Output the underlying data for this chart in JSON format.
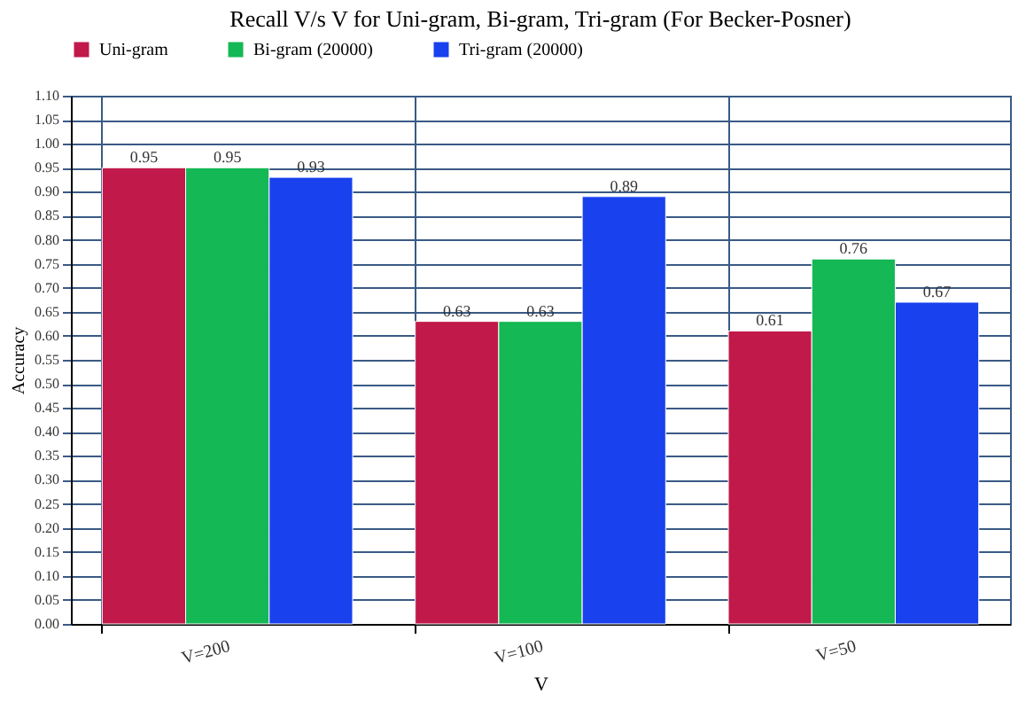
{
  "chart_data": {
    "type": "bar",
    "title": "Recall V/s V for Uni-gram, Bi-gram, Tri-gram (For Becker-Posner)",
    "xlabel": "V",
    "ylabel": "Accuracy",
    "categories": [
      "V=200",
      "V=100",
      "V=50"
    ],
    "series": [
      {
        "name": "Uni-gram",
        "color": "#c0194a",
        "values": [
          0.95,
          0.63,
          0.61
        ]
      },
      {
        "name": "Bi-gram (20000)",
        "color": "#14b854",
        "values": [
          0.95,
          0.63,
          0.76
        ]
      },
      {
        "name": "Tri-gram (20000)",
        "color": "#1941ee",
        "values": [
          0.93,
          0.89,
          0.67
        ]
      }
    ],
    "ylim": [
      0,
      1.1
    ],
    "yticks": [
      {
        "value": 0,
        "label": "0.00"
      },
      {
        "value": 0.05,
        "label": "0.05"
      },
      {
        "value": 0.1,
        "label": "0.10"
      },
      {
        "value": 0.15,
        "label": "0.15"
      },
      {
        "value": 0.2,
        "label": "0.20"
      },
      {
        "value": 0.25,
        "label": "0.25"
      },
      {
        "value": 0.3,
        "label": "0.30"
      },
      {
        "value": 0.35,
        "label": "0.35"
      },
      {
        "value": 0.4,
        "label": "0.40"
      },
      {
        "value": 0.45,
        "label": "0.45"
      },
      {
        "value": 0.5,
        "label": "0.50"
      },
      {
        "value": 0.55,
        "label": "0.55"
      },
      {
        "value": 0.6,
        "label": "0.60"
      },
      {
        "value": 0.65,
        "label": "0.65"
      },
      {
        "value": 0.7,
        "label": "0.70"
      },
      {
        "value": 0.75,
        "label": "0.75"
      },
      {
        "value": 0.8,
        "label": "0.80"
      },
      {
        "value": 0.85,
        "label": "0.85"
      },
      {
        "value": 0.9,
        "label": "0.90"
      },
      {
        "value": 0.95,
        "label": "0.95"
      },
      {
        "value": 1.0,
        "label": "1.00"
      },
      {
        "value": 1.05,
        "label": "1.05"
      },
      {
        "value": 1.1,
        "label": "1.10"
      }
    ],
    "grid": true,
    "legend": "top left",
    "data_labels": true
  }
}
